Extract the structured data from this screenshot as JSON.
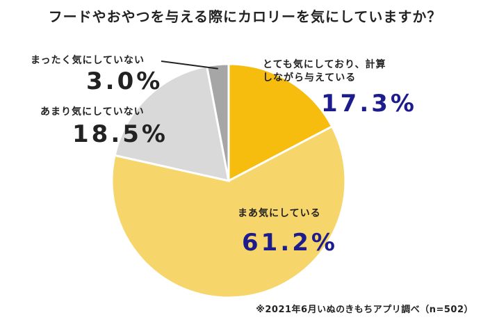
{
  "chart_data": {
    "type": "pie",
    "title": "フードやおやつを与える際にカロリーを気にしていますか？",
    "slices": [
      {
        "label_lines": [
          "とても気にしており、計算",
          "しながら与えている"
        ],
        "value": 17.3,
        "value_text": "17.3%",
        "color": "#f6bd0e"
      },
      {
        "label_lines": [
          "まあ気にしている"
        ],
        "value": 61.2,
        "value_text": "61.2%",
        "color": "#f6d56a"
      },
      {
        "label_lines": [
          "あまり気にしていない"
        ],
        "value": 18.5,
        "value_text": "18.5%",
        "color": "#d9d9d9"
      },
      {
        "label_lines": [
          "まったく気にしていない"
        ],
        "value": 3.0,
        "value_text": "3.0%",
        "color": "#a6a6a6"
      }
    ],
    "source": "※2021年6月いぬのきもちアプリ調べ（n=502）"
  }
}
